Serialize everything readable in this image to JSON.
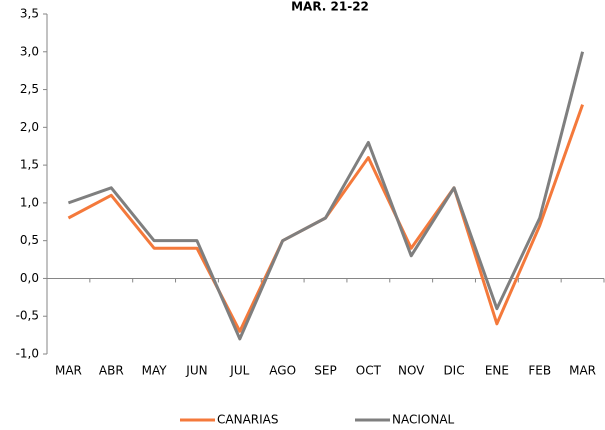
{
  "chart_data": {
    "type": "line",
    "title": "MAR. 21-22",
    "categories": [
      "MAR",
      "ABR",
      "MAY",
      "JUN",
      "JUL",
      "AGO",
      "SEP",
      "OCT",
      "NOV",
      "DIC",
      "ENE",
      "FEB",
      "MAR"
    ],
    "series": [
      {
        "name": "CANARIAS",
        "color": "#f4793b",
        "values": [
          0.8,
          1.1,
          0.4,
          0.4,
          -0.7,
          0.5,
          0.8,
          1.6,
          0.4,
          1.2,
          -0.6,
          0.7,
          2.3
        ]
      },
      {
        "name": "NACIONAL",
        "color": "#7f7f7f",
        "values": [
          1.0,
          1.2,
          0.5,
          0.5,
          -0.8,
          0.5,
          0.8,
          1.8,
          0.3,
          1.2,
          -0.4,
          0.8,
          3.0
        ]
      }
    ],
    "ylim": [
      -1.0,
      3.5
    ],
    "yticks": [
      {
        "value": -1.0,
        "label": "-1,0"
      },
      {
        "value": -0.5,
        "label": "-0,5"
      },
      {
        "value": 0.0,
        "label": "0,0"
      },
      {
        "value": 0.5,
        "label": "0,5"
      },
      {
        "value": 1.0,
        "label": "1,0"
      },
      {
        "value": 1.5,
        "label": "1,5"
      },
      {
        "value": 2.0,
        "label": "2,0"
      },
      {
        "value": 2.5,
        "label": "2,5"
      },
      {
        "value": 3.0,
        "label": "3,0"
      },
      {
        "value": 3.5,
        "label": "3,5"
      }
    ],
    "grid": false,
    "legend": "bottom"
  }
}
